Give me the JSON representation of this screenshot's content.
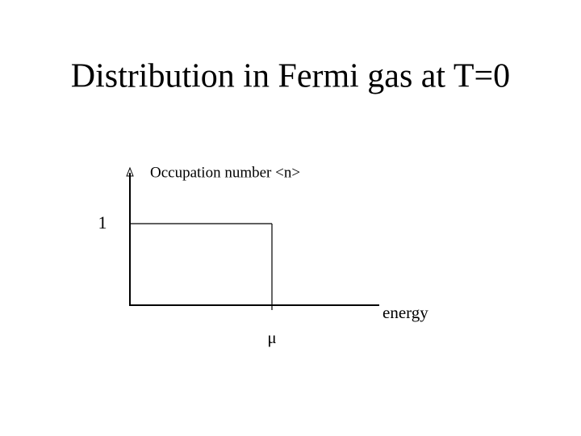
{
  "title": "Distribution in Fermi gas at T=0",
  "diagram": {
    "y_axis_label": "Occupation number <n>",
    "x_axis_label": "energy",
    "y_tick_label": "1",
    "x_tick_label": "μ"
  }
}
